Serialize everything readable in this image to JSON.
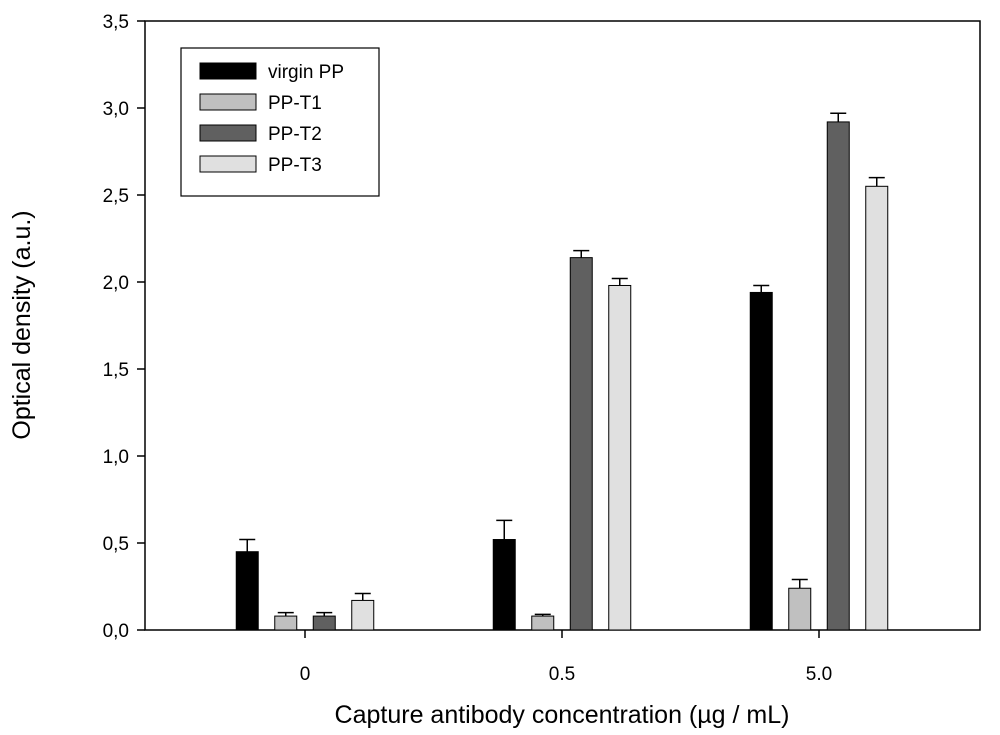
{
  "chart_data": {
    "type": "bar",
    "title": "",
    "xlabel": "Capture antibody concentration (µg / mL)",
    "ylabel": "Optical density (a.u.)",
    "categories": [
      "0",
      "0.5",
      "5.0"
    ],
    "ylim": [
      0,
      3.5
    ],
    "yticks": [
      0,
      0.5,
      1.0,
      1.5,
      2.0,
      2.5,
      3.0,
      3.5
    ],
    "ytick_labels": [
      "0,0",
      "0,5",
      "1,0",
      "1,5",
      "2,0",
      "2,5",
      "3,0",
      "3,5"
    ],
    "grid": false,
    "legend_position": "top-left",
    "series": [
      {
        "name": "virgin PP",
        "color": "#000000",
        "values": [
          0.45,
          0.52,
          1.94
        ],
        "errors": [
          0.07,
          0.11,
          0.04
        ]
      },
      {
        "name": "PP-T1",
        "color": "#c0c0c0",
        "values": [
          0.08,
          0.08,
          0.24
        ],
        "errors": [
          0.02,
          0.01,
          0.05
        ]
      },
      {
        "name": "PP-T2",
        "color": "#606060",
        "values": [
          0.08,
          2.14,
          2.92
        ],
        "errors": [
          0.02,
          0.04,
          0.05
        ]
      },
      {
        "name": "PP-T3",
        "color": "#e0e0e0",
        "values": [
          0.17,
          1.98,
          2.55
        ],
        "errors": [
          0.04,
          0.04,
          0.05
        ]
      }
    ]
  }
}
